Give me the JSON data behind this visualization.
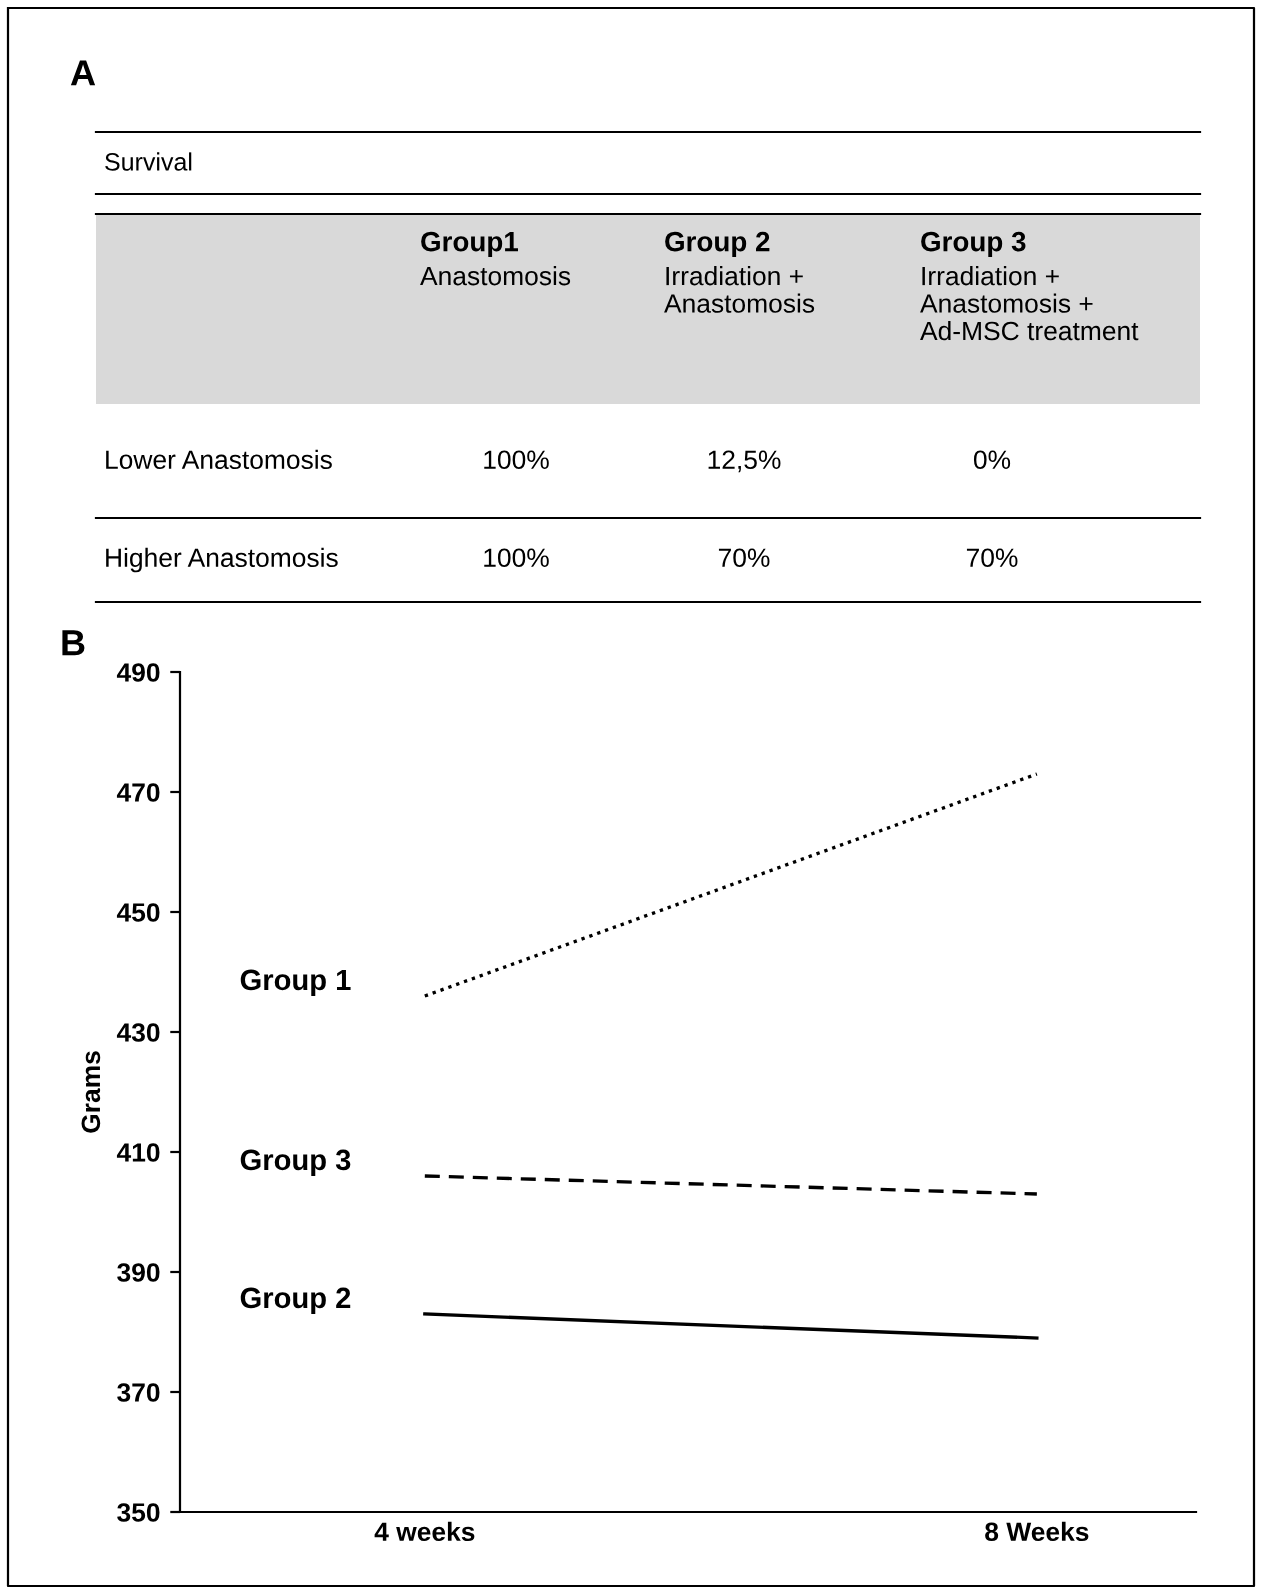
{
  "chart_data": [
    {
      "type": "other",
      "title": "Survival",
      "annotations": [
        "A"
      ],
      "categories": [
        "Group1\nAnastomosis",
        "Group 2\nIrradiation +\nAnastomosis",
        "Group 3\nIrradiation +\nAnastomosis +\nAd-MSC treatment"
      ],
      "y_categories": [
        "Lower Anastomosis",
        "Higher Anastomosis"
      ],
      "cell_labels": [
        [
          "100%",
          "12,5%",
          "0%"
        ],
        [
          "100%",
          "70%",
          "70%"
        ]
      ]
    },
    {
      "type": "line",
      "annotations": [
        "B"
      ],
      "ylabel": "Grams",
      "categories": [
        "4 weeks",
        "8 Weeks"
      ],
      "series": [
        {
          "name": "Group 1",
          "color": "#000000",
          "line_style": "dotted",
          "values": [
            436,
            473
          ]
        },
        {
          "name": "Group 3",
          "color": "#000000",
          "line_style": "dashed",
          "values": [
            406,
            403
          ]
        },
        {
          "name": "Group 2",
          "color": "#000000",
          "line_style": "solid",
          "values": [
            383,
            379
          ]
        }
      ],
      "ylim": [
        350,
        490
      ],
      "yticks": [
        350,
        370,
        390,
        410,
        430,
        450,
        470,
        490
      ],
      "grid": false,
      "legend": false
    }
  ]
}
